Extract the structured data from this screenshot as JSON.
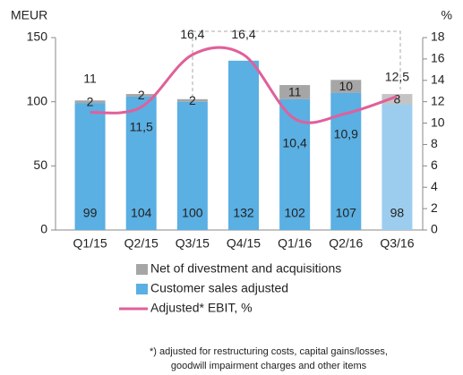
{
  "chart_data": {
    "type": "bar",
    "categories": [
      "Q1/15",
      "Q2/15",
      "Q3/15",
      "Q4/15",
      "Q1/16",
      "Q2/16",
      "Q3/16"
    ],
    "series": [
      {
        "name": "Customer sales adjusted",
        "color": "#5aafe3",
        "point_colors": [
          "#5aafe3",
          "#5aafe3",
          "#5aafe3",
          "#5aafe3",
          "#5aafe3",
          "#5aafe3",
          "#9dcdee"
        ],
        "values": [
          99,
          104,
          100,
          132,
          102,
          107,
          98
        ]
      },
      {
        "name": "Net of divestment and acquisitions",
        "color": "#a6a6a6",
        "point_colors": [
          "#a6a6a6",
          "#a6a6a6",
          "#a6a6a6",
          "#a6a6a6",
          "#a6a6a6",
          "#a6a6a6",
          "#c4c4c4"
        ],
        "values": [
          2,
          2,
          2,
          null,
          11,
          10,
          8
        ]
      },
      {
        "name": "Adjusted* EBIT, %",
        "type": "line",
        "axis": "y2",
        "color": "#e0609a",
        "values": [
          11,
          11.5,
          16.4,
          16.4,
          10.4,
          10.9,
          12.5
        ],
        "value_labels": [
          "11",
          "11,5",
          "16,4",
          "16,4",
          "10,4",
          "10,9",
          "12,5"
        ]
      }
    ],
    "y_label": "MEUR",
    "y2_label": "%",
    "ylim": [
      0,
      150
    ],
    "yticks": [
      0,
      50,
      100,
      150
    ],
    "y2lim": [
      0,
      18
    ],
    "y2ticks": [
      0,
      2,
      4,
      6,
      8,
      10,
      12,
      14,
      16,
      18
    ],
    "footnote": [
      "*) adjusted for restructuring costs, capital gains/losses,",
      "goodwill impairment charges and other items"
    ]
  }
}
